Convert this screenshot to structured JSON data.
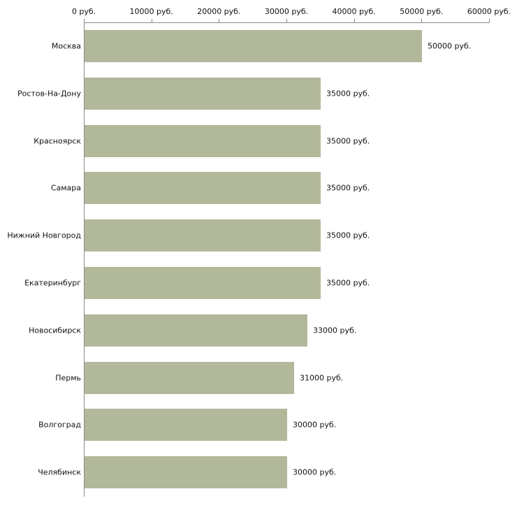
{
  "chart_data": {
    "type": "bar",
    "orientation": "horizontal",
    "title": "",
    "xlabel": "",
    "ylabel": "",
    "categories": [
      "Москва",
      "Ростов-На-Дону",
      "Красноярск",
      "Самара",
      "Нижний Новгород",
      "Екатеринбург",
      "Новосибирск",
      "Пермь",
      "Волгоград",
      "Челябинск"
    ],
    "values": [
      50000,
      35000,
      35000,
      35000,
      35000,
      35000,
      33000,
      31000,
      30000,
      30000
    ],
    "value_labels": [
      "50000 руб.",
      "35000 руб.",
      "35000 руб.",
      "35000 руб.",
      "35000 руб.",
      "35000 руб.",
      "33000 руб.",
      "31000 руб.",
      "30000 руб.",
      "30000 руб."
    ],
    "x_ticks": [
      "0 руб.",
      "10000 руб.",
      "20000 руб.",
      "30000 руб.",
      "40000 руб.",
      "50000 руб.",
      "60000 руб."
    ],
    "x_tick_values": [
      0,
      10000,
      20000,
      30000,
      40000,
      50000,
      60000
    ],
    "xlim": [
      0,
      60000
    ],
    "grid": false,
    "legend": false,
    "bar_color": "#b2b89a",
    "axis_color": "#8a8a8a",
    "text_color": "#111111",
    "background_color": "#ffffff"
  }
}
